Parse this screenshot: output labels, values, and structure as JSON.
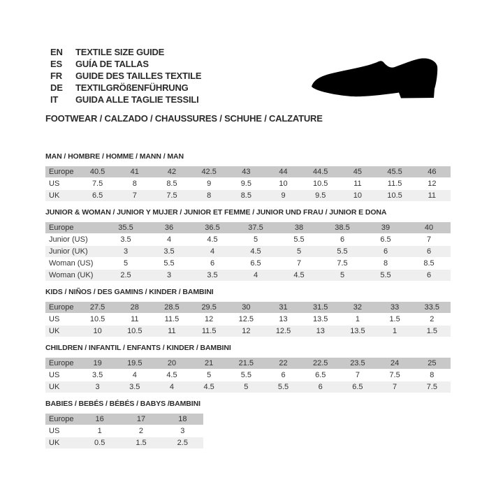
{
  "header": {
    "languages": [
      {
        "code": "EN",
        "text": "TEXTILE SIZE GUIDE"
      },
      {
        "code": "ES",
        "text": "GUÍA DE TALLAS"
      },
      {
        "code": "FR",
        "text": "GUIDE DES TAILLES TEXTILE"
      },
      {
        "code": "DE",
        "text": "TEXTILGRÖßENFÜHRUNG"
      },
      {
        "code": "IT",
        "text": "GUIDA ALLE TAGLIE TESSILI"
      }
    ],
    "category_line": "FOOTWEAR / CALZADO / CHAUSSURES / SCHUHE / CALZATURE",
    "shoe_icon": "dress-shoe-silhouette"
  },
  "tables": [
    {
      "id": "man",
      "title": "MAN / HOMBRE / HOMME / MANN / MAN",
      "rows": [
        {
          "label": "Europe",
          "values": [
            "40.5",
            "41",
            "42",
            "42.5",
            "43",
            "44",
            "44.5",
            "45",
            "45.5",
            "46"
          ]
        },
        {
          "label": "US",
          "values": [
            "7.5",
            "8",
            "8.5",
            "9",
            "9.5",
            "10",
            "10.5",
            "11",
            "11.5",
            "12"
          ]
        },
        {
          "label": "UK",
          "values": [
            "6.5",
            "7",
            "7.5",
            "8",
            "8.5",
            "9",
            "9.5",
            "10",
            "10.5",
            "11"
          ]
        }
      ]
    },
    {
      "id": "junior-woman",
      "title": "JUNIOR & WOMAN / JUNIOR Y MUJER / JUNIOR ET FEMME / JUNIOR UND FRAU / JUNIOR E DONA",
      "rows": [
        {
          "label": "Europe",
          "values": [
            "35.5",
            "36",
            "36.5",
            "37.5",
            "38",
            "38.5",
            "39",
            "40"
          ]
        },
        {
          "label": "Junior (US)",
          "values": [
            "3.5",
            "4",
            "4.5",
            "5",
            "5.5",
            "6",
            "6.5",
            "7"
          ]
        },
        {
          "label": "Junior (UK)",
          "values": [
            "3",
            "3.5",
            "4",
            "4.5",
            "5",
            "5.5",
            "6",
            "6"
          ]
        },
        {
          "label": "Woman (US)",
          "values": [
            "5",
            "5.5",
            "6",
            "6.5",
            "7",
            "7.5",
            "8",
            "8.5"
          ]
        },
        {
          "label": "Woman (UK)",
          "values": [
            "2.5",
            "3",
            "3.5",
            "4",
            "4.5",
            "5",
            "5.5",
            "6"
          ]
        }
      ]
    },
    {
      "id": "kids",
      "title": "KIDS / NIÑOS / DES GAMINS / KINDER / BAMBINI",
      "rows": [
        {
          "label": "Europe",
          "values": [
            "27.5",
            "28",
            "28.5",
            "29.5",
            "30",
            "31",
            "31.5",
            "32",
            "33",
            "33.5"
          ]
        },
        {
          "label": "US",
          "values": [
            "10.5",
            "11",
            "11.5",
            "12",
            "12.5",
            "13",
            "13.5",
            "1",
            "1.5",
            "2"
          ]
        },
        {
          "label": "UK",
          "values": [
            "10",
            "10.5",
            "11",
            "11.5",
            "12",
            "12.5",
            "13",
            "13.5",
            "1",
            "1.5"
          ]
        }
      ]
    },
    {
      "id": "children",
      "title": "CHILDREN / INFANTIL / ENFANTS / KINDER / BAMBINI",
      "rows": [
        {
          "label": "Europe",
          "values": [
            "19",
            "19.5",
            "20",
            "21",
            "21.5",
            "22",
            "22.5",
            "23.5",
            "24",
            "25"
          ]
        },
        {
          "label": "US",
          "values": [
            "3.5",
            "4",
            "4.5",
            "5",
            "5.5",
            "6",
            "6.5",
            "7",
            "7.5",
            "8"
          ]
        },
        {
          "label": "UK",
          "values": [
            "3",
            "3.5",
            "4",
            "4.5",
            "5",
            "5.5",
            "6",
            "6.5",
            "7",
            "7.5"
          ]
        }
      ]
    },
    {
      "id": "babies",
      "title": "BABIES / BEBÉS / BÉBÉS / BABYS /BAMBINI",
      "rows": [
        {
          "label": "Europe",
          "values": [
            "16",
            "17",
            "18"
          ]
        },
        {
          "label": "US",
          "values": [
            "1",
            "2",
            "3"
          ]
        },
        {
          "label": "UK",
          "values": [
            "0.5",
            "1.5",
            "2.5"
          ]
        }
      ]
    }
  ],
  "colors": {
    "table_header_bg": "#c8c8c8",
    "table_alt_row_bg": "#efefef",
    "text": "#333333",
    "shoe": "#000000"
  }
}
